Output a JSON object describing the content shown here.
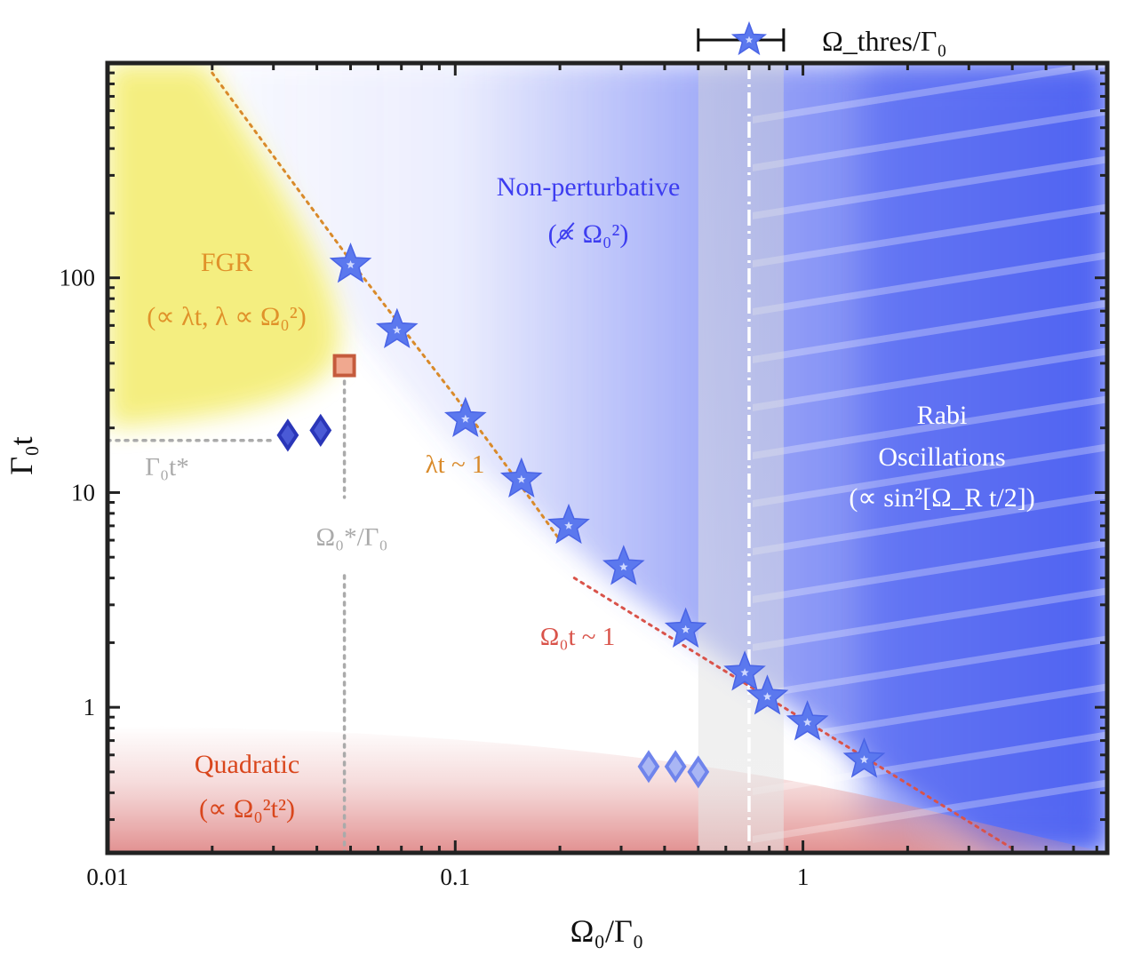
{
  "chart_data": {
    "type": "scatter",
    "xlabel": "Ω₀/Γ₀",
    "ylabel": "Γ₀t",
    "x_scale": "log",
    "y_scale": "log",
    "xlim": [
      0.01,
      7.5
    ],
    "ylim": [
      0.21,
      1000
    ],
    "x_ticks": [
      {
        "value": 0.01,
        "label": "0.01"
      },
      {
        "value": 0.1,
        "label": "0.1"
      },
      {
        "value": 1,
        "label": "1"
      }
    ],
    "y_ticks": [
      {
        "value": 1,
        "label": "1"
      },
      {
        "value": 10,
        "label": "10"
      },
      {
        "value": 100,
        "label": "100"
      }
    ],
    "regions": [
      {
        "label_lines": [
          "FGR",
          "(∝ λt, λ ∝ Ω₀²)"
        ],
        "color": "#e0922a",
        "fill": "#f4ee7a"
      },
      {
        "label_lines": [
          "Non-perturbative",
          "(∝̸ Ω₀²)"
        ],
        "color": "#3d3df0",
        "fill": "#5a6cf2"
      },
      {
        "label_lines": [
          "Rabi",
          "Oscillations",
          "(∝ sin²[Ω_R t/2])"
        ],
        "color": "#ffffff",
        "fill": "#5a6cf2"
      },
      {
        "label_lines": [
          "Quadratic",
          "(∝ Ω₀²t²)"
        ],
        "color": "#d9461c",
        "fill": "#e49a9a"
      }
    ],
    "lines": [
      {
        "label": "λt ~ 1",
        "color": "#d98a2a",
        "style": "dotted",
        "x": [
          0.02,
          0.05,
          0.1,
          0.15,
          0.2
        ],
        "y": [
          900,
          120,
          28,
          11.5,
          6
        ]
      },
      {
        "label": "Ω₀t ~ 1",
        "color": "#d9534a",
        "style": "dotted",
        "x": [
          0.22,
          4.0
        ],
        "y": [
          4.0,
          0.22
        ]
      }
    ],
    "threshold": {
      "label": "Ω_thres/Γ₀",
      "value": 0.7,
      "band": [
        0.5,
        0.88
      ],
      "style": "dash-dot"
    },
    "guides": [
      {
        "label": "Γ₀t*",
        "value": 17.5,
        "color": "#aaaaaa"
      },
      {
        "label": "Ω₀*/Γ₀",
        "value": 0.048,
        "color": "#aaaaaa"
      }
    ],
    "series": [
      {
        "marker": "star",
        "color": "#5b78ee",
        "points": [
          {
            "x": 0.05,
            "y": 115
          },
          {
            "x": 0.068,
            "y": 57
          },
          {
            "x": 0.107,
            "y": 22
          },
          {
            "x": 0.155,
            "y": 11.5
          },
          {
            "x": 0.212,
            "y": 7
          },
          {
            "x": 0.305,
            "y": 4.5
          },
          {
            "x": 0.46,
            "y": 2.3
          },
          {
            "x": 0.68,
            "y": 1.45
          },
          {
            "x": 0.79,
            "y": 1.12
          },
          {
            "x": 1.03,
            "y": 0.85
          },
          {
            "x": 1.5,
            "y": 0.57
          }
        ]
      },
      {
        "marker": "diamond",
        "color": "#2a36b8",
        "points": [
          {
            "x": 0.033,
            "y": 18.5
          },
          {
            "x": 0.041,
            "y": 19.5
          }
        ]
      },
      {
        "marker": "diamond",
        "color": "#6f84ec",
        "points": [
          {
            "x": 0.36,
            "y": 0.53
          },
          {
            "x": 0.43,
            "y": 0.53
          },
          {
            "x": 0.5,
            "y": 0.5
          }
        ]
      },
      {
        "marker": "square",
        "color": "#c55b3c",
        "points": [
          {
            "x": 0.048,
            "y": 39
          }
        ]
      }
    ]
  }
}
